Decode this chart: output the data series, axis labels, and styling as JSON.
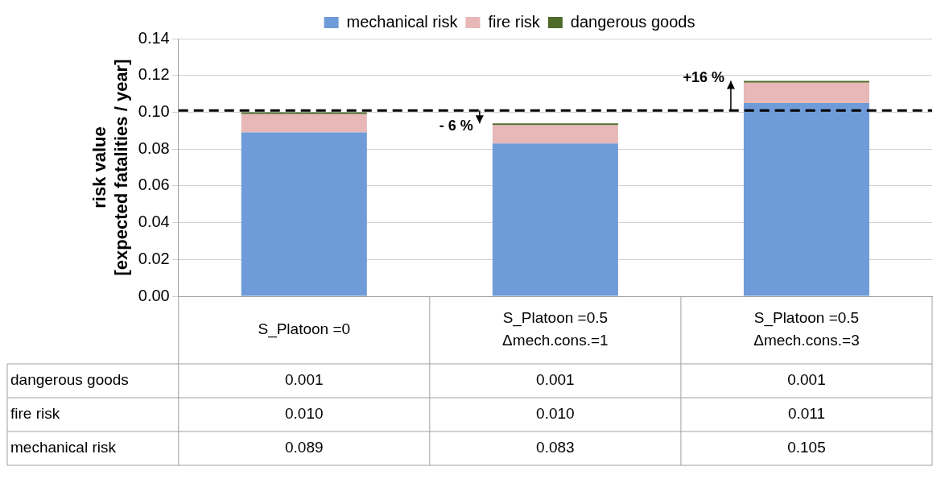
{
  "chart_data": {
    "type": "bar",
    "stacked": true,
    "categories": [
      "S_Platoon =0",
      "S_Platoon =0.5\nΔmech.cons.=1",
      "S_Platoon =0.5\nΔmech.cons.=3"
    ],
    "series": [
      {
        "name": "mechanical risk",
        "color": "#6f9bd8",
        "values": [
          0.089,
          0.083,
          0.105
        ],
        "value_labels": [
          "0.089",
          "0.083",
          "0.105"
        ]
      },
      {
        "name": "fire risk",
        "color": "#e8b7b7",
        "values": [
          0.01,
          0.01,
          0.011
        ],
        "value_labels": [
          "0.010",
          "0.010",
          "0.011"
        ]
      },
      {
        "name": "dangerous goods",
        "color": "#4f6b2a",
        "values": [
          0.001,
          0.001,
          0.001
        ],
        "value_labels": [
          "0.001",
          "0.001",
          "0.001"
        ]
      }
    ],
    "ylabel": "risk value\n[expected fatalities / year]",
    "ylim": [
      0,
      0.14
    ],
    "yticks": [
      "0.00",
      "0.02",
      "0.04",
      "0.06",
      "0.08",
      "0.10",
      "0.12",
      "0.14"
    ],
    "ref_lines": [
      {
        "axis": "y",
        "value": 0.101,
        "color": "#000000",
        "line_style": "dashed"
      }
    ],
    "annotations": [
      "- 6 %",
      "+16 %"
    ],
    "grid": "y",
    "legend": "top"
  }
}
